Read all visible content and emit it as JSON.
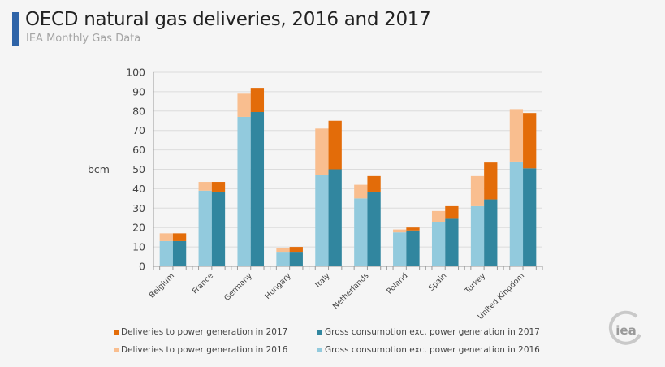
{
  "header": {
    "title": "OECD natural gas deliveries, 2016 and 2017",
    "subtitle": "IEA Monthly Gas Data",
    "accent_color": "#2f64a8"
  },
  "logo": {
    "text": "iea"
  },
  "chart_data": {
    "type": "bar",
    "stacked": true,
    "grouped": true,
    "title": "OECD natural gas deliveries, 2016 and 2017",
    "xlabel": "",
    "ylabel": "bcm",
    "ylim": [
      0,
      100
    ],
    "yticks": [
      0,
      10,
      20,
      30,
      40,
      50,
      60,
      70,
      80,
      90,
      100
    ],
    "grid": true,
    "legend_placement": "bottom",
    "categories": [
      "Belgium",
      "France",
      "Germany",
      "Hungary",
      "Italy",
      "Netherlands",
      "Poland",
      "Spain",
      "Turkey",
      "United Kingdom"
    ],
    "series": [
      {
        "name": "Gross consumption exc. power generation in 2016",
        "year": "2016",
        "stack": "2016",
        "color": "#92cadd",
        "values": [
          13,
          39,
          77,
          7.5,
          47,
          35,
          17.5,
          23,
          31,
          54
        ]
      },
      {
        "name": "Deliveries to power generation in 2016",
        "year": "2016",
        "stack": "2016",
        "color": "#f9be8f",
        "values": [
          4,
          4.5,
          12,
          2,
          24,
          7,
          1.5,
          5.5,
          15.5,
          27
        ]
      },
      {
        "name": "Gross consumption exc. power generation in 2017",
        "year": "2017",
        "stack": "2017",
        "color": "#31869f",
        "values": [
          13,
          38.5,
          79.5,
          7.5,
          50,
          38.5,
          18.5,
          24.5,
          34.5,
          50.5
        ]
      },
      {
        "name": "Deliveries to power generation in 2017",
        "year": "2017",
        "stack": "2017",
        "color": "#e36c09",
        "values": [
          4,
          5,
          12.5,
          2.5,
          25,
          8,
          1.5,
          6.5,
          19,
          28.5
        ]
      }
    ],
    "legend": [
      {
        "label": "Deliveries to power generation in 2017",
        "color": "#e36c09"
      },
      {
        "label": "Gross consumption  exc. power generation  in 2017",
        "color": "#31869f"
      },
      {
        "label": "Deliveries to power generation in 2016",
        "color": "#f9be8f"
      },
      {
        "label": "Gross consumption  exc. power generation in 2016",
        "color": "#92cadd"
      }
    ]
  }
}
